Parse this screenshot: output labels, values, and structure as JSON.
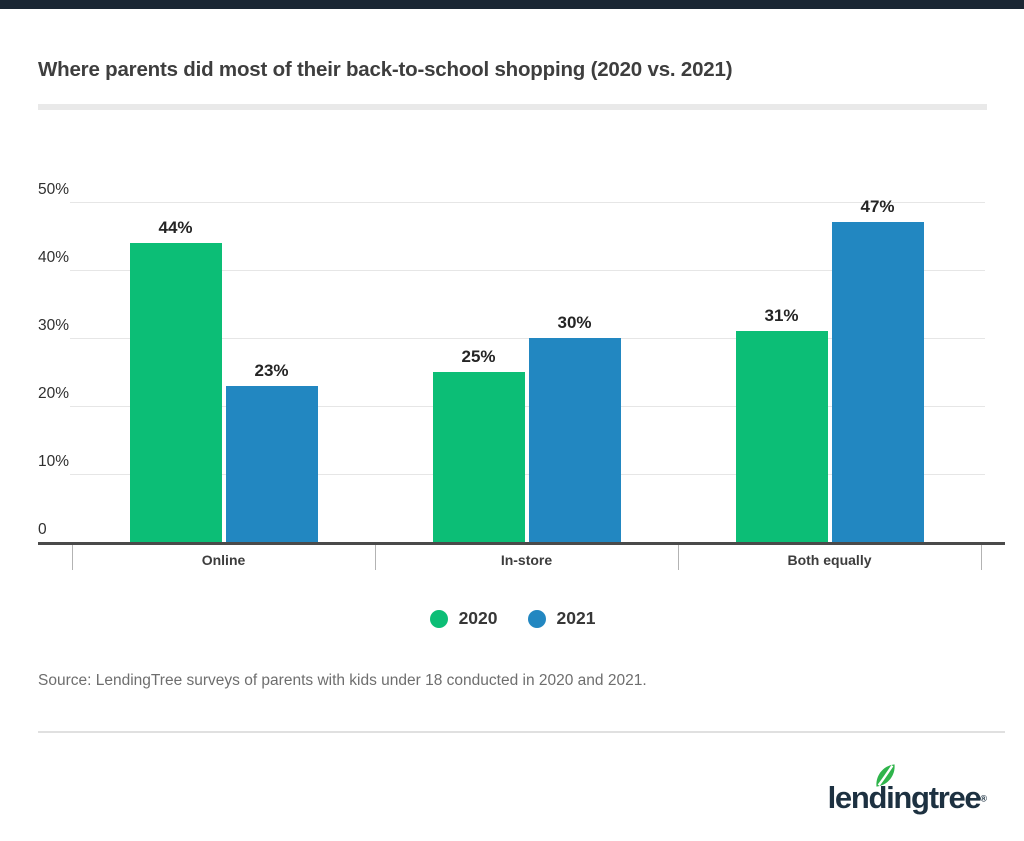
{
  "colors": {
    "top_bar": "#1b2734",
    "grid": "#e6e6e6",
    "axis": "#4a4a4a",
    "tick": "#b3b3b3",
    "logo_text": "#1d3141",
    "logo_leaf": "#2fb44b"
  },
  "chart_data": {
    "type": "bar",
    "title": "Where parents did most of their back-to-school shopping (2020 vs. 2021)",
    "categories": [
      "Online",
      "In-store",
      "Both equally"
    ],
    "series": [
      {
        "name": "2020",
        "color": "#0cbe76",
        "values": [
          44,
          25,
          31
        ]
      },
      {
        "name": "2021",
        "color": "#2287c1",
        "values": [
          23,
          30,
          47
        ]
      }
    ],
    "value_suffix": "%",
    "ylim": [
      0,
      50
    ],
    "ytick_step": 10,
    "ytick_labels": [
      "0",
      "10%",
      "20%",
      "30%",
      "40%",
      "50%"
    ],
    "grid": true,
    "legend_position": "bottom-center"
  },
  "footer": {
    "source": "Source: LendingTree surveys of parents with kids under 18 conducted in 2020 and 2021.",
    "logo_text": "lendingtree",
    "registered_mark": "®"
  }
}
